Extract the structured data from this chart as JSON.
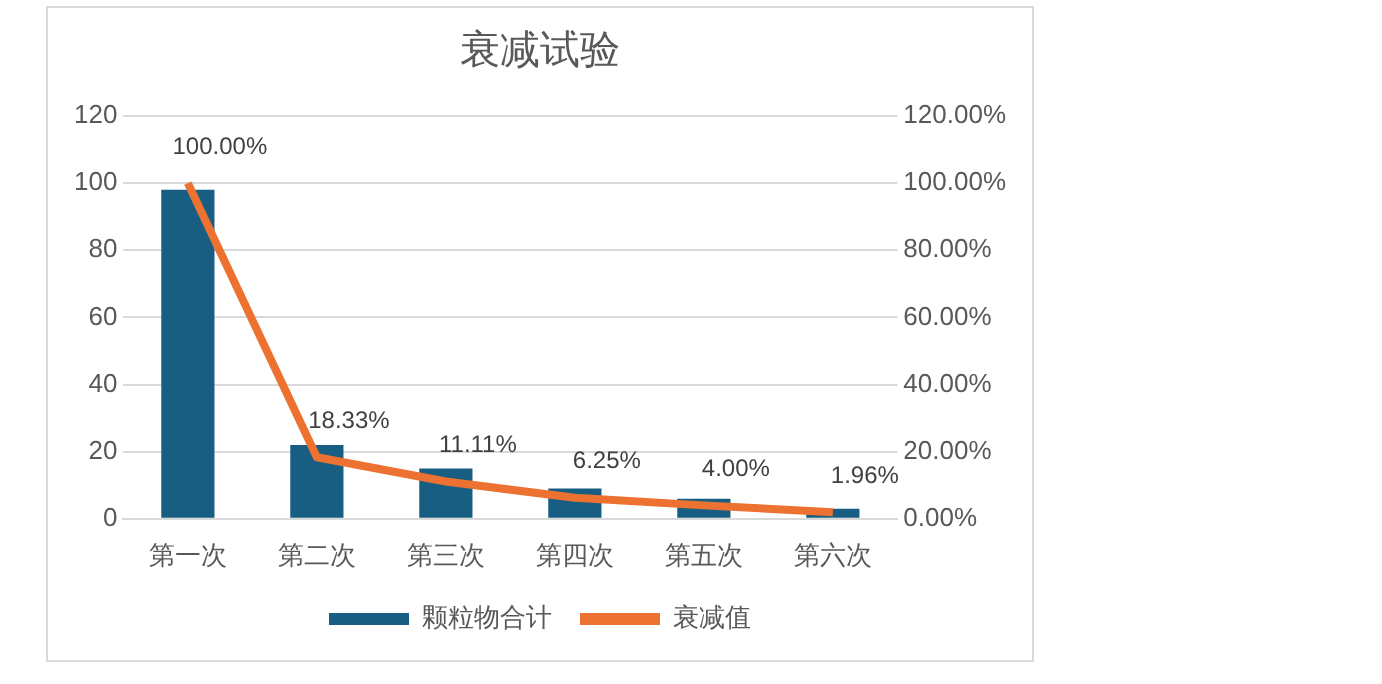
{
  "chart_data": {
    "type": "bar",
    "title": "衰减试验",
    "categories": [
      "第一次",
      "第二次",
      "第三次",
      "第四次",
      "第五次",
      "第六次"
    ],
    "series": [
      {
        "name": "颗粒物合计",
        "color": "#175e82",
        "values": [
          98,
          22,
          15,
          9,
          6,
          3
        ]
      },
      {
        "name": "衰减值",
        "type": "line",
        "axis": "y2",
        "color": "#ed7231",
        "values": [
          100,
          18.33,
          11.11,
          6.25,
          4,
          1.96
        ],
        "value_labels": [
          "100.00%",
          "18.33%",
          "11.11%",
          "6.25%",
          "4.00%",
          "1.96%"
        ]
      }
    ],
    "ylim": [
      0,
      120
    ],
    "yticks": [
      0,
      20,
      40,
      60,
      80,
      100,
      120
    ],
    "y2lim": [
      0,
      120
    ],
    "y2ticks": [
      {
        "value": 0,
        "label": "0.00%"
      },
      {
        "value": 20,
        "label": "20.00%"
      },
      {
        "value": 40,
        "label": "40.00%"
      },
      {
        "value": 60,
        "label": "60.00%"
      },
      {
        "value": 80,
        "label": "80.00%"
      },
      {
        "value": 100,
        "label": "100.00%"
      },
      {
        "value": 120,
        "label": "120.00%"
      }
    ],
    "grid": "y",
    "legend": "bottom",
    "marker": "none"
  }
}
